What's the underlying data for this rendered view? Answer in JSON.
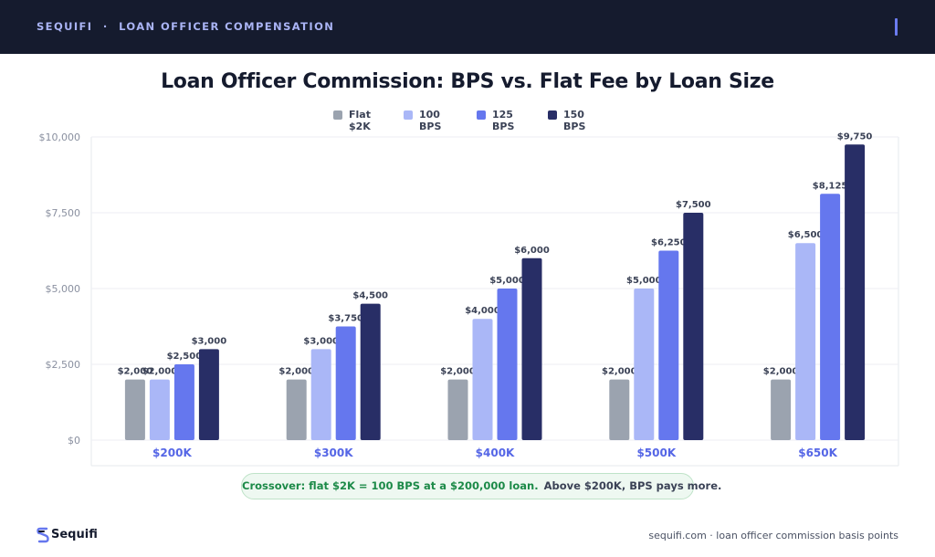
{
  "header": {
    "brand": "SEQUIFI",
    "separator": "·",
    "section": "LOAN OFFICER COMPENSATION"
  },
  "colors": {
    "flat": "#9ba3af",
    "bps100": "#aab7f7",
    "bps125": "#6577ee",
    "bps150": "#282e66",
    "topbar": "#151b2e",
    "accent_green": "#1c8a48"
  },
  "chart_data": {
    "type": "bar",
    "title": "Loan Officer Commission: BPS vs. Flat Fee by Loan Size",
    "categories": [
      "$200K",
      "$300K",
      "$400K",
      "$500K",
      "$650K"
    ],
    "series": [
      {
        "name": "Flat $2K",
        "values": [
          2000,
          2000,
          2000,
          2000,
          2000
        ]
      },
      {
        "name": "100 BPS",
        "values": [
          2000,
          3000,
          4000,
          5000,
          6500
        ]
      },
      {
        "name": "125 BPS",
        "values": [
          2500,
          3750,
          5000,
          6250,
          8125
        ]
      },
      {
        "name": "150 BPS",
        "values": [
          3000,
          4500,
          6000,
          7500,
          9750
        ]
      }
    ],
    "data_labels": [
      [
        "$2,000",
        "$2,000",
        "$2,000",
        "$2,000",
        "$2,000"
      ],
      [
        "$2,000",
        "$3,000",
        "$4,000",
        "$5,000",
        "$6,500"
      ],
      [
        "$2,500",
        "$3,750",
        "$5,000",
        "$6,250",
        "$8,125"
      ],
      [
        "$3,000",
        "$4,500",
        "$6,000",
        "$7,500",
        "$9,750"
      ]
    ],
    "yticks": [
      0,
      2500,
      5000,
      7500,
      10000
    ],
    "ytick_labels": [
      "$0",
      "$2,500",
      "$5,000",
      "$7,500",
      "$10,000"
    ],
    "ylim": [
      0,
      10000
    ],
    "xlabel": "",
    "ylabel": "",
    "grid": true,
    "legend_position": "top-center"
  },
  "legend": {
    "flat_line1": "Flat",
    "flat_line2": "$2K",
    "bps100": "100 BPS",
    "bps125_line1": "125",
    "bps125_line2": "BPS",
    "bps150": "150 BPS"
  },
  "callout": {
    "main": "Crossover: flat $2K = 100 BPS at a $200,000 loan.",
    "secondary": "Above $200K, BPS pays more."
  },
  "footer": {
    "logo_text": "Sequifi",
    "right_text": "sequifi.com · loan officer commission basis points"
  }
}
